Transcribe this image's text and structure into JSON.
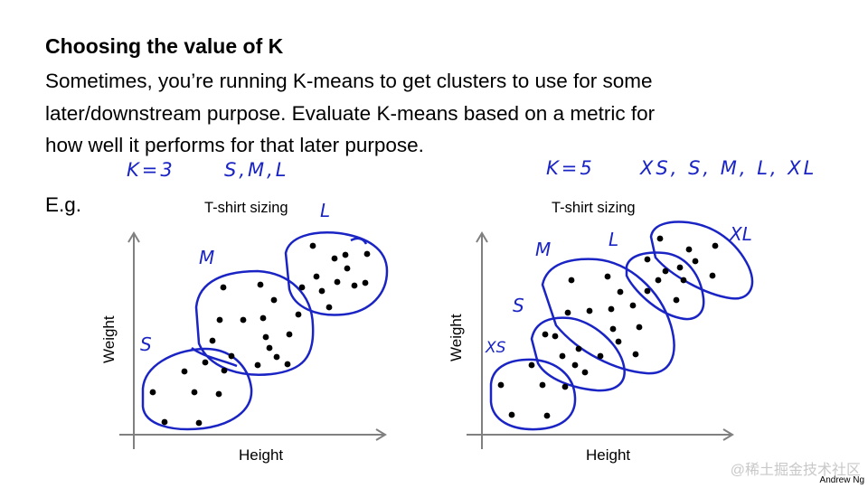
{
  "slide": {
    "title": "Choosing the value of K",
    "paragraph_lines": [
      "Sometimes, you’re running K-means to get clusters to use for some",
      "later/downstream purpose. Evaluate K-means based on a metric for",
      "how well it performs for that later purpose."
    ],
    "example_label": "E.g.",
    "credit": "Andrew Ng",
    "watermark": "@稀土掘金技术社区"
  },
  "annotations": {
    "left_k": "K=3",
    "left_sizes": "S,M,L",
    "right_k": "K=5",
    "right_sizes": "XS, S, M, L, XL"
  },
  "colors": {
    "ink": "#1a24c4",
    "points": "#000000",
    "axes": "#808080"
  },
  "chart_data": [
    {
      "type": "scatter",
      "title": "T-shirt sizing",
      "xlabel": "Height",
      "ylabel": "Weight",
      "clusters": [
        "S",
        "M",
        "L"
      ],
      "cluster_label_text": [
        "S",
        "M",
        "L"
      ],
      "n_points": 35
    },
    {
      "type": "scatter",
      "title": "T-shirt sizing",
      "xlabel": "Height",
      "ylabel": "Weight",
      "clusters": [
        "XS",
        "S",
        "M",
        "L",
        "XL"
      ],
      "cluster_label_text": [
        "XS",
        "S",
        "M",
        "L",
        "XL"
      ],
      "n_points": 36
    }
  ]
}
